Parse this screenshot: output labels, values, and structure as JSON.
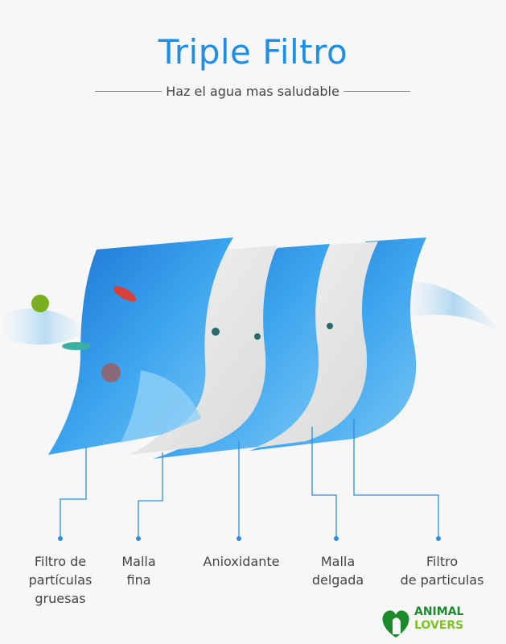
{
  "header": {
    "title": "Triple Filtro",
    "subtitle": "Haz el agua mas saludable"
  },
  "layers": [
    {
      "label_line1": "Filtro de",
      "label_line2": "partículas",
      "label_line3": "gruesas"
    },
    {
      "label_line1": "Malla",
      "label_line2": "fina"
    },
    {
      "label_line1": "Anioxidante"
    },
    {
      "label_line1": "Malla",
      "label_line2": "delgada"
    },
    {
      "label_line1": "Filtro",
      "label_line2": "de particulas"
    }
  ],
  "logo": {
    "line1": "ANIMAL",
    "line2": "LOVERS"
  },
  "colors": {
    "accent": "#1e8fe6",
    "blue_sheet": "#2a8fe0",
    "white_sheet": "#e6e6e6",
    "logo_dark": "#1a8a2a",
    "logo_light": "#7cc520"
  }
}
